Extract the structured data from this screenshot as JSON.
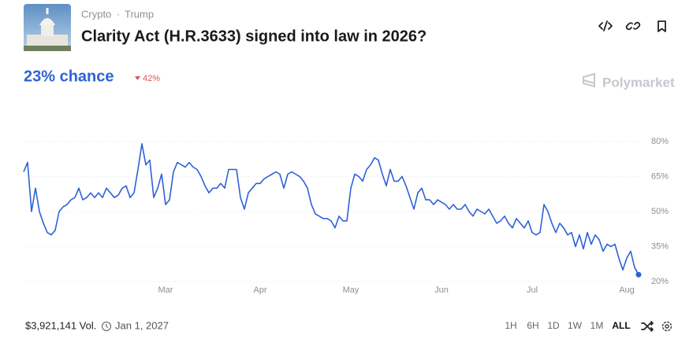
{
  "header": {
    "breadcrumb": [
      "Crypto",
      "Trump"
    ],
    "title": "Clarity Act (H.R.3633) signed into law in 2026?",
    "chance": "23% chance",
    "change": "42%",
    "brand": "Polymarket"
  },
  "chart_data": {
    "type": "line",
    "color": "#2e62d6",
    "grid": true,
    "ylim": [
      15,
      85
    ],
    "yticks": [
      {
        "value": 20,
        "label": "20%"
      },
      {
        "value": 35,
        "label": "35%"
      },
      {
        "value": 50,
        "label": "50%"
      },
      {
        "value": 65,
        "label": "65%"
      },
      {
        "value": 80,
        "label": "80%"
      }
    ],
    "categories": [
      null,
      null,
      null,
      null,
      null,
      null,
      null,
      null,
      null,
      null,
      null,
      null,
      null,
      null,
      null,
      null,
      null,
      null,
      null,
      null,
      null,
      null,
      null,
      null,
      null,
      null,
      null,
      null,
      null,
      null,
      null,
      null,
      null,
      null,
      null,
      null,
      "Mar",
      null,
      null,
      null,
      null,
      null,
      null,
      null,
      null,
      null,
      null,
      null,
      null,
      null,
      null,
      null,
      null,
      null,
      null,
      null,
      null,
      null,
      null,
      null,
      "Apr",
      null,
      null,
      null,
      null,
      null,
      null,
      null,
      null,
      null,
      null,
      null,
      null,
      null,
      null,
      null,
      null,
      null,
      null,
      null,
      null,
      null,
      null,
      "May",
      null,
      null,
      null,
      null,
      null,
      null,
      null,
      null,
      null,
      null,
      null,
      null,
      null,
      null,
      null,
      null,
      null,
      null,
      null,
      null,
      null,
      null,
      "Jun",
      null,
      null,
      null,
      null,
      null,
      null,
      null,
      null,
      null,
      null,
      null,
      null,
      null,
      null,
      null,
      null,
      null,
      null,
      null,
      null,
      null,
      null,
      "Jul",
      null,
      null,
      null,
      null,
      null,
      null,
      null,
      null,
      null,
      null,
      null,
      null,
      null,
      null,
      null,
      null,
      null,
      null,
      null,
      null,
      null,
      null,
      null,
      "Aug",
      null,
      null,
      null
    ],
    "values": [
      67,
      71,
      50,
      60,
      50,
      45,
      41,
      40,
      42,
      50,
      52,
      53,
      55,
      56,
      60,
      55,
      56,
      58,
      56,
      58,
      56,
      60,
      58,
      56,
      57,
      60,
      61,
      56,
      58,
      68,
      79,
      70,
      72,
      56,
      60,
      66,
      53,
      55,
      67,
      71,
      70,
      69,
      71,
      69,
      68,
      65,
      61,
      58,
      60,
      60,
      62,
      60,
      68,
      68,
      68,
      56,
      51,
      58,
      60,
      62,
      62,
      64,
      65,
      66,
      67,
      66,
      60,
      66,
      67,
      66,
      65,
      63,
      60,
      53,
      49,
      48,
      47,
      47,
      46,
      43,
      48,
      46,
      46,
      60,
      66,
      65,
      63,
      68,
      70,
      73,
      72,
      66,
      61,
      68,
      63,
      63,
      65,
      61,
      56,
      51,
      58,
      60,
      55,
      55,
      53,
      55,
      54,
      53,
      51,
      53,
      51,
      51,
      53,
      50,
      48,
      51,
      50,
      49,
      51,
      48,
      45,
      46,
      48,
      45,
      43,
      47,
      45,
      43,
      46,
      41,
      40,
      41,
      53,
      50,
      45,
      41,
      45,
      43,
      40,
      41,
      35,
      40,
      34,
      41,
      36,
      40,
      38,
      33,
      36,
      35,
      36,
      30,
      25,
      30,
      33,
      26,
      23
    ]
  },
  "footer": {
    "volume": "$3,921,141 Vol.",
    "end_date": "Jan 1, 2027",
    "ranges": [
      "1H",
      "6H",
      "1D",
      "1W",
      "1M",
      "ALL"
    ]
  }
}
